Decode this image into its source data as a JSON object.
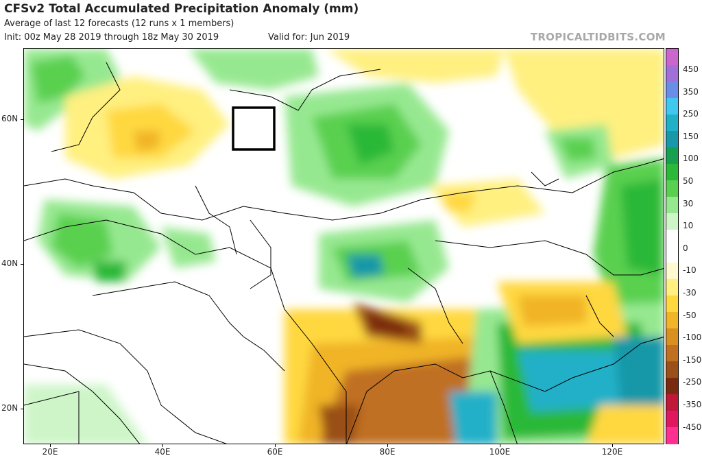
{
  "header": {
    "title": "CFSv2 Total Accumulated Precipitation Anomaly (mm)",
    "subtitle": "Average of last 12 forecasts (12 runs x 1 members)",
    "init": "Init: 00z May 28 2019 through 18z May 30 2019",
    "valid": "Valid for: Jun 2019",
    "brand": "TROPICALTIDBITS.COM"
  },
  "axes": {
    "lat_labels": [
      "60N",
      "40N",
      "20N"
    ],
    "lon_labels": [
      "20E",
      "40E",
      "60E",
      "80E",
      "100E",
      "120E"
    ]
  },
  "colorbar": {
    "labels": [
      "450",
      "350",
      "250",
      "150",
      "100",
      "50",
      "30",
      "10",
      "0",
      "-10",
      "-30",
      "-50",
      "-100",
      "-150",
      "-250",
      "-350",
      "-450"
    ],
    "colors": [
      "#cc66cc",
      "#a070d8",
      "#6a8ee8",
      "#40c8f0",
      "#20b0c8",
      "#1898a8",
      "#16a050",
      "#2cb838",
      "#5ad050",
      "#96e890",
      "#cdf5c8",
      "#ffffff",
      "#ffffff",
      "#fffad0",
      "#fff080",
      "#ffd840",
      "#f0b428",
      "#d89020",
      "#c07020",
      "#9a5018",
      "#7a2a10",
      "#c01838",
      "#e01860",
      "#ff3090"
    ]
  },
  "map": {
    "highlight_box": "selected-region",
    "colors": {
      "dry_1": "#fff080",
      "dry_2": "#ffd840",
      "dry_3": "#f0b428",
      "dry_4": "#c07020",
      "dry_5": "#9a5018",
      "dry_6": "#7a2a10",
      "wet_1": "#cdf5c8",
      "wet_2": "#96e890",
      "wet_3": "#5ad050",
      "wet_4": "#2cb838",
      "wet_5": "#16a050",
      "wet_6": "#1898a8",
      "wet_7": "#20b0c8"
    }
  }
}
